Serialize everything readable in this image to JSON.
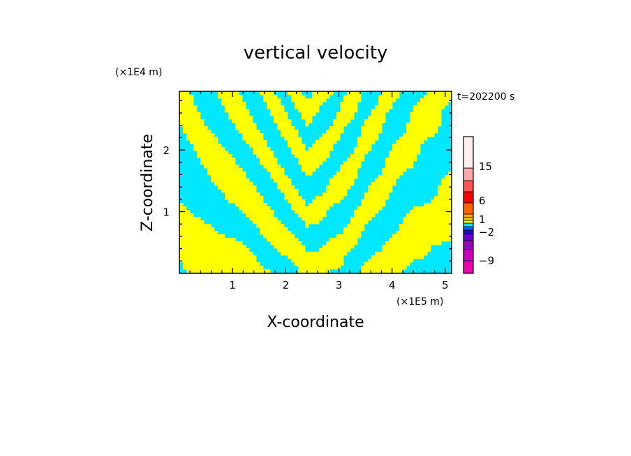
{
  "chart_data": {
    "type": "heatmap",
    "title": "vertical velocity",
    "xlabel": "X-coordinate",
    "ylabel": "Z-coordinate",
    "x_unit": "(×1E5 m)",
    "y_unit": "(×1E4 m)",
    "time_label": "t=202200 s",
    "xlim": [
      0,
      5.12
    ],
    "ylim": [
      0,
      2.95
    ],
    "x_ticks": [
      "1",
      "2",
      "3",
      "4",
      "5"
    ],
    "y_ticks": [
      "1",
      "2"
    ],
    "field_colors": {
      "positive": "#ffff00",
      "negative": "#00e8ff"
    },
    "colorbar": {
      "tick_labels": [
        "15",
        "6",
        "1",
        "-2",
        "-9"
      ],
      "levels_bottom_to_top": [
        {
          "color": "#ee00aa"
        },
        {
          "color": "#cc00bb"
        },
        {
          "color": "#9900bb"
        },
        {
          "color": "#6600cc"
        },
        {
          "color": "#2200dd"
        },
        {
          "color": "#0066ff"
        },
        {
          "color": "#00e8ff"
        },
        {
          "color": "#ffff00"
        },
        {
          "color": "#ffd200"
        },
        {
          "color": "#ffaa00"
        },
        {
          "color": "#ff6600"
        },
        {
          "color": "#ff0000"
        },
        {
          "color": "#ff5555"
        },
        {
          "color": "#ffaaaa"
        },
        {
          "color": "#ffeeee"
        }
      ]
    }
  }
}
